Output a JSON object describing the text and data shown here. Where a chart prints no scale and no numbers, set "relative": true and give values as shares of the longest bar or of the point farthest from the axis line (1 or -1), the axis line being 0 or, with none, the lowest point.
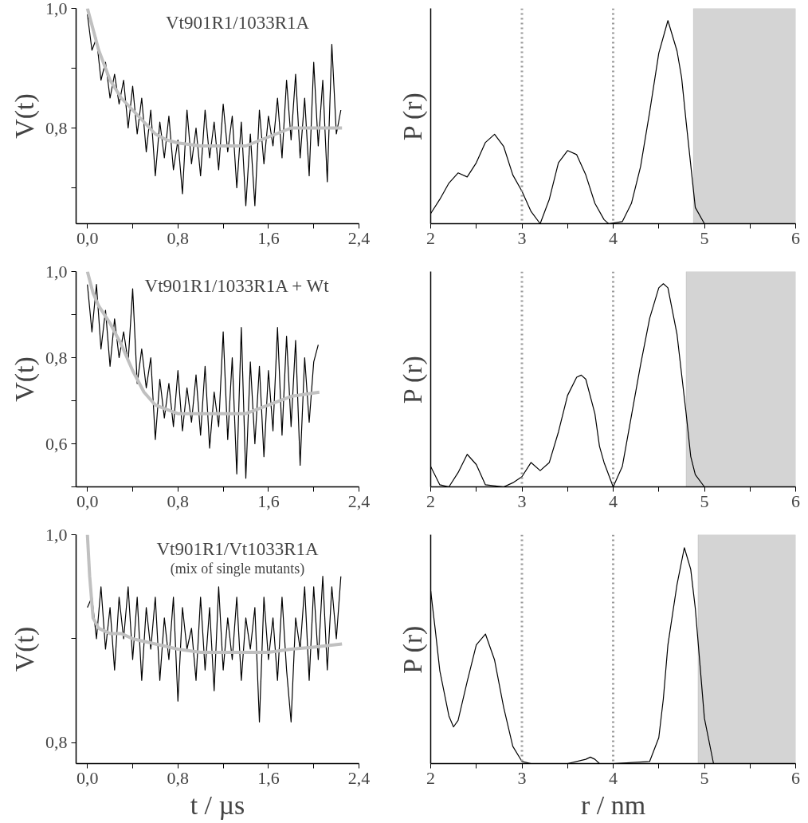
{
  "chart_data": [
    {
      "type": "line",
      "title": "Vt901R1/1033R1A",
      "ylabel": "V(t)",
      "xlim": [
        -0.1,
        2.4
      ],
      "ylim": [
        0.64,
        1.0
      ],
      "xticks": [
        {
          "value": 0,
          "label": "0,0"
        },
        {
          "value": 0.4,
          "label": null
        },
        {
          "value": 0.8,
          "label": "0,8"
        },
        {
          "value": 1.2,
          "label": null
        },
        {
          "value": 1.6,
          "label": "1,6"
        },
        {
          "value": 2.0,
          "label": null
        },
        {
          "value": 2.4,
          "label": "2,4"
        }
      ],
      "yticks": [
        {
          "value": 0.7,
          "label": null
        },
        {
          "value": 0.8,
          "label": "0,8"
        },
        {
          "value": 0.9,
          "label": null
        },
        {
          "value": 1.0,
          "label": "1,0"
        }
      ],
      "grid": false,
      "marker": "none",
      "line_style": "solid",
      "series": [
        {
          "color": "#000000",
          "x": [
            0,
            0.04,
            0.08,
            0.12,
            0.16,
            0.2,
            0.24,
            0.28,
            0.32,
            0.36,
            0.4,
            0.44,
            0.48,
            0.52,
            0.56,
            0.6,
            0.64,
            0.68,
            0.72,
            0.76,
            0.8,
            0.84,
            0.88,
            0.92,
            0.96,
            1.0,
            1.04,
            1.08,
            1.12,
            1.16,
            1.2,
            1.24,
            1.28,
            1.32,
            1.36,
            1.4,
            1.44,
            1.48,
            1.52,
            1.56,
            1.6,
            1.64,
            1.68,
            1.72,
            1.76,
            1.8,
            1.84,
            1.88,
            1.92,
            1.96,
            2.0,
            2.04,
            2.08,
            2.12,
            2.16,
            2.2,
            2.24
          ],
          "values": [
            0.99,
            0.93,
            0.95,
            0.88,
            0.91,
            0.85,
            0.89,
            0.84,
            0.88,
            0.8,
            0.87,
            0.79,
            0.85,
            0.76,
            0.83,
            0.72,
            0.81,
            0.75,
            0.82,
            0.73,
            0.78,
            0.69,
            0.83,
            0.74,
            0.8,
            0.72,
            0.83,
            0.75,
            0.81,
            0.73,
            0.84,
            0.76,
            0.82,
            0.7,
            0.81,
            0.67,
            0.79,
            0.67,
            0.83,
            0.74,
            0.82,
            0.77,
            0.85,
            0.75,
            0.88,
            0.78,
            0.89,
            0.75,
            0.85,
            0.72,
            0.91,
            0.77,
            0.88,
            0.71,
            0.94,
            0.79,
            0.83
          ]
        },
        {
          "color": "#c0c0c0",
          "x": [
            0,
            0.1,
            0.2,
            0.3,
            0.4,
            0.5,
            0.6,
            0.7,
            0.8,
            1.0,
            1.2,
            1.4,
            1.6,
            1.8,
            2.0,
            2.25
          ],
          "values": [
            1.0,
            0.93,
            0.88,
            0.85,
            0.83,
            0.81,
            0.79,
            0.78,
            0.775,
            0.77,
            0.77,
            0.77,
            0.785,
            0.8,
            0.8,
            0.8
          ]
        }
      ]
    },
    {
      "type": "line",
      "ylabel": "P (r)",
      "relative": true,
      "xlim": [
        2,
        6
      ],
      "xticks": [
        2,
        {
          "value": 2.5,
          "label": null
        },
        3,
        {
          "value": 3.5,
          "label": null
        },
        4,
        {
          "value": 4.5,
          "label": null
        },
        5,
        {
          "value": 5.5,
          "label": null
        },
        6
      ],
      "tick_labels": "x",
      "grid": false,
      "marker": "none",
      "line_style": "solid",
      "ref_lines": [
        {
          "axis": "x",
          "value": 3,
          "color": "#999999",
          "line_style": "dotted"
        },
        {
          "axis": "x",
          "value": 4,
          "color": "#999999",
          "line_style": "dotted"
        }
      ],
      "bands": [
        {
          "axis": "x",
          "from": 4.88,
          "to": 6,
          "color": "#d4d4d4"
        }
      ],
      "series": [
        {
          "color": "#000000",
          "x": [
            2.0,
            2.1,
            2.2,
            2.3,
            2.4,
            2.5,
            2.6,
            2.7,
            2.8,
            2.9,
            3.0,
            3.1,
            3.2,
            3.3,
            3.4,
            3.5,
            3.6,
            3.7,
            3.8,
            3.9,
            3.95,
            4.1,
            4.2,
            4.3,
            4.4,
            4.5,
            4.6,
            4.7,
            4.75,
            4.8,
            4.9,
            5.0,
            5.5,
            6.0
          ],
          "values": [
            0.05,
            0.12,
            0.2,
            0.25,
            0.23,
            0.3,
            0.4,
            0.44,
            0.38,
            0.24,
            0.16,
            0.06,
            0.0,
            0.12,
            0.3,
            0.36,
            0.34,
            0.24,
            0.1,
            0.02,
            0.0,
            0.01,
            0.1,
            0.28,
            0.55,
            0.84,
            1.0,
            0.85,
            0.72,
            0.5,
            0.08,
            0.0,
            0.0,
            0.0
          ]
        }
      ]
    },
    {
      "type": "line",
      "title": "Vt901R1/1033R1A + Wt",
      "ylabel": "V(t)",
      "xlim": [
        -0.1,
        2.4
      ],
      "ylim": [
        0.5,
        1.0
      ],
      "xticks": [
        {
          "value": 0,
          "label": "0,0"
        },
        {
          "value": 0.4,
          "label": null
        },
        {
          "value": 0.8,
          "label": "0,8"
        },
        {
          "value": 1.2,
          "label": null
        },
        {
          "value": 1.6,
          "label": "1,6"
        },
        {
          "value": 2.0,
          "label": null
        },
        {
          "value": 2.4,
          "label": "2,4"
        }
      ],
      "yticks": [
        {
          "value": 0.5,
          "label": null
        },
        {
          "value": 0.6,
          "label": "0,6"
        },
        {
          "value": 0.7,
          "label": null
        },
        {
          "value": 0.8,
          "label": "0,8"
        },
        {
          "value": 0.9,
          "label": null
        },
        {
          "value": 1.0,
          "label": "1,0"
        }
      ],
      "grid": false,
      "marker": "none",
      "line_style": "solid",
      "series": [
        {
          "color": "#000000",
          "x": [
            0,
            0.04,
            0.08,
            0.12,
            0.16,
            0.2,
            0.24,
            0.28,
            0.32,
            0.36,
            0.4,
            0.44,
            0.48,
            0.52,
            0.56,
            0.6,
            0.64,
            0.68,
            0.72,
            0.76,
            0.8,
            0.84,
            0.88,
            0.92,
            0.96,
            1.0,
            1.04,
            1.08,
            1.12,
            1.16,
            1.2,
            1.24,
            1.28,
            1.32,
            1.36,
            1.4,
            1.44,
            1.48,
            1.52,
            1.56,
            1.6,
            1.64,
            1.68,
            1.72,
            1.76,
            1.8,
            1.84,
            1.88,
            1.92,
            1.96,
            2.0,
            2.04
          ],
          "values": [
            0.97,
            0.86,
            0.97,
            0.82,
            0.91,
            0.78,
            0.89,
            0.8,
            0.86,
            0.79,
            0.96,
            0.74,
            0.82,
            0.73,
            0.8,
            0.61,
            0.75,
            0.66,
            0.74,
            0.64,
            0.77,
            0.63,
            0.73,
            0.65,
            0.76,
            0.62,
            0.78,
            0.59,
            0.72,
            0.64,
            0.86,
            0.61,
            0.8,
            0.53,
            0.87,
            0.52,
            0.79,
            0.6,
            0.78,
            0.57,
            0.77,
            0.63,
            0.87,
            0.62,
            0.85,
            0.64,
            0.84,
            0.55,
            0.8,
            0.65,
            0.79,
            0.83
          ]
        },
        {
          "color": "#c0c0c0",
          "x": [
            0,
            0.05,
            0.1,
            0.2,
            0.3,
            0.4,
            0.5,
            0.6,
            0.7,
            0.8,
            1.0,
            1.2,
            1.4,
            1.6,
            1.8,
            2.05
          ],
          "values": [
            1.0,
            0.95,
            0.92,
            0.88,
            0.83,
            0.77,
            0.72,
            0.69,
            0.68,
            0.67,
            0.67,
            0.67,
            0.67,
            0.69,
            0.71,
            0.72
          ]
        }
      ]
    },
    {
      "type": "line",
      "ylabel": "P (r)",
      "relative": true,
      "xlim": [
        2,
        6
      ],
      "xticks": [
        2,
        {
          "value": 2.5,
          "label": null
        },
        3,
        {
          "value": 3.5,
          "label": null
        },
        4,
        {
          "value": 4.5,
          "label": null
        },
        5,
        {
          "value": 5.5,
          "label": null
        },
        6
      ],
      "tick_labels": "x",
      "grid": false,
      "marker": "none",
      "line_style": "solid",
      "ref_lines": [
        {
          "axis": "x",
          "value": 3,
          "color": "#999999",
          "line_style": "dotted"
        },
        {
          "axis": "x",
          "value": 4,
          "color": "#999999",
          "line_style": "dotted"
        }
      ],
      "bands": [
        {
          "axis": "x",
          "from": 4.8,
          "to": 6,
          "color": "#d4d4d4"
        }
      ],
      "series": [
        {
          "color": "#000000",
          "x": [
            2.0,
            2.1,
            2.2,
            2.3,
            2.4,
            2.5,
            2.6,
            2.8,
            2.9,
            3.0,
            3.1,
            3.2,
            3.3,
            3.4,
            3.5,
            3.6,
            3.65,
            3.7,
            3.8,
            3.85,
            3.9,
            4.0,
            4.1,
            4.2,
            4.3,
            4.4,
            4.5,
            4.55,
            4.6,
            4.7,
            4.8,
            4.85,
            4.9,
            5.0,
            5.5,
            6.0
          ],
          "values": [
            0.1,
            0.01,
            0.0,
            0.07,
            0.16,
            0.11,
            0.01,
            0.0,
            0.02,
            0.05,
            0.12,
            0.08,
            0.12,
            0.27,
            0.45,
            0.54,
            0.55,
            0.53,
            0.36,
            0.2,
            0.12,
            0.0,
            0.1,
            0.35,
            0.6,
            0.83,
            0.98,
            1.0,
            0.98,
            0.75,
            0.36,
            0.15,
            0.06,
            0.0,
            0.0,
            0.0
          ]
        }
      ]
    },
    {
      "type": "line",
      "title": "Vt901R1/Vt1033R1A",
      "subtitle": "(mix of single mutants)",
      "xlabel": "t / µs",
      "ylabel": "V(t)",
      "xlim": [
        -0.1,
        2.4
      ],
      "ylim": [
        0.78,
        1.0
      ],
      "xticks": [
        {
          "value": 0,
          "label": "0,0"
        },
        {
          "value": 0.4,
          "label": null
        },
        {
          "value": 0.8,
          "label": "0,8"
        },
        {
          "value": 1.2,
          "label": null
        },
        {
          "value": 1.6,
          "label": "1,6"
        },
        {
          "value": 2.0,
          "label": null
        },
        {
          "value": 2.4,
          "label": "2,4"
        }
      ],
      "yticks": [
        {
          "value": 0.8,
          "label": "0,8"
        },
        {
          "value": 0.9,
          "label": null
        },
        {
          "value": 1.0,
          "label": "1,0"
        }
      ],
      "grid": false,
      "marker": "none",
      "line_style": "solid",
      "series": [
        {
          "color": "#000000",
          "x": [
            0,
            0.04,
            0.08,
            0.12,
            0.16,
            0.2,
            0.24,
            0.28,
            0.32,
            0.36,
            0.4,
            0.44,
            0.48,
            0.52,
            0.56,
            0.6,
            0.64,
            0.68,
            0.72,
            0.76,
            0.8,
            0.84,
            0.88,
            0.92,
            0.96,
            1.0,
            1.04,
            1.08,
            1.12,
            1.16,
            1.2,
            1.24,
            1.28,
            1.32,
            1.36,
            1.4,
            1.44,
            1.48,
            1.52,
            1.56,
            1.6,
            1.64,
            1.68,
            1.72,
            1.76,
            1.8,
            1.84,
            1.88,
            1.92,
            1.96,
            2.0,
            2.04,
            2.08,
            2.12,
            2.16,
            2.2,
            2.24
          ],
          "values": [
            0.93,
            0.94,
            0.9,
            0.95,
            0.89,
            0.93,
            0.87,
            0.94,
            0.9,
            0.95,
            0.88,
            0.94,
            0.86,
            0.93,
            0.89,
            0.94,
            0.86,
            0.92,
            0.88,
            0.94,
            0.84,
            0.93,
            0.89,
            0.91,
            0.86,
            0.94,
            0.87,
            0.93,
            0.85,
            0.95,
            0.87,
            0.92,
            0.88,
            0.94,
            0.86,
            0.92,
            0.89,
            0.93,
            0.82,
            0.94,
            0.88,
            0.92,
            0.86,
            0.94,
            0.87,
            0.82,
            0.92,
            0.89,
            0.95,
            0.86,
            0.95,
            0.88,
            0.96,
            0.87,
            0.95,
            0.9,
            0.96
          ]
        },
        {
          "color": "#c0c0c0",
          "x": [
            0,
            0.02,
            0.05,
            0.1,
            0.2,
            0.3,
            0.4,
            0.6,
            0.8,
            1.0,
            1.2,
            1.4,
            1.6,
            1.8,
            2.0,
            2.25
          ],
          "values": [
            1.0,
            0.96,
            0.92,
            0.91,
            0.905,
            0.905,
            0.9,
            0.895,
            0.89,
            0.887,
            0.887,
            0.887,
            0.887,
            0.89,
            0.892,
            0.895
          ]
        }
      ]
    },
    {
      "type": "line",
      "xlabel": "r / nm",
      "ylabel": "P (r)",
      "relative": true,
      "xlim": [
        2,
        6
      ],
      "xticks": [
        2,
        {
          "value": 2.5,
          "label": null
        },
        3,
        {
          "value": 3.5,
          "label": null
        },
        4,
        {
          "value": 4.5,
          "label": null
        },
        5,
        {
          "value": 5.5,
          "label": null
        },
        6
      ],
      "tick_labels": "x",
      "grid": false,
      "marker": "none",
      "line_style": "solid",
      "ref_lines": [
        {
          "axis": "x",
          "value": 3,
          "color": "#999999",
          "line_style": "dotted"
        },
        {
          "axis": "x",
          "value": 4,
          "color": "#999999",
          "line_style": "dotted"
        }
      ],
      "bands": [
        {
          "axis": "x",
          "from": 4.93,
          "to": 6,
          "color": "#d4d4d4"
        }
      ],
      "series": [
        {
          "color": "#000000",
          "x": [
            2.0,
            2.05,
            2.1,
            2.2,
            2.25,
            2.3,
            2.4,
            2.5,
            2.6,
            2.7,
            2.8,
            2.9,
            3.0,
            3.1,
            3.5,
            3.7,
            3.75,
            3.8,
            3.85,
            4.0,
            4.4,
            4.5,
            4.55,
            4.6,
            4.7,
            4.78,
            4.85,
            4.9,
            5.0,
            5.1,
            5.5,
            6.0
          ],
          "values": [
            0.8,
            0.62,
            0.43,
            0.22,
            0.17,
            0.2,
            0.38,
            0.55,
            0.6,
            0.48,
            0.26,
            0.08,
            0.01,
            0.0,
            0.0,
            0.02,
            0.03,
            0.02,
            0.0,
            0.0,
            0.01,
            0.12,
            0.3,
            0.55,
            0.83,
            1.0,
            0.9,
            0.72,
            0.21,
            0.0,
            0.0,
            0.0
          ]
        }
      ]
    }
  ]
}
